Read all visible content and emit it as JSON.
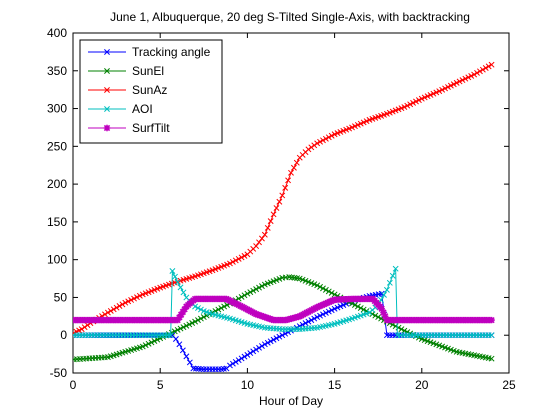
{
  "chart_data": {
    "type": "line",
    "title": "June 1, Albuquerque, 20 deg S-Tilted Single-Axis, with backtracking",
    "xlabel": "Hour of Day",
    "ylabel": "",
    "xlim": [
      0,
      25
    ],
    "ylim": [
      -50,
      400
    ],
    "xticks": [
      0,
      5,
      10,
      15,
      20,
      25
    ],
    "yticks": [
      -50,
      0,
      50,
      100,
      150,
      200,
      250,
      300,
      350,
      400
    ],
    "legend_position": "top-left",
    "grid": false,
    "series": [
      {
        "name": "Tracking angle",
        "color": "#0000ff",
        "marker": "x",
        "x": [
          0.05,
          5.7,
          5.9,
          6.1,
          6.3,
          6.5,
          6.7,
          6.9,
          7.5,
          8.0,
          8.5,
          8.8,
          9.0,
          10.0,
          11.0,
          12.0,
          13.0,
          14.0,
          15.0,
          16.0,
          17.0,
          17.7,
          18.0,
          18.5,
          24.0
        ],
        "y": [
          0,
          0,
          -5,
          -12,
          -20,
          -28,
          -36,
          -44,
          -45,
          -45,
          -45,
          -44,
          -40,
          -26,
          -12,
          0,
          12,
          24,
          35,
          45,
          52,
          55,
          0,
          0,
          0
        ]
      },
      {
        "name": "SunEl",
        "color": "#008000",
        "marker": "x",
        "x": [
          0.05,
          2.0,
          4.0,
          5.0,
          6.0,
          7.0,
          8.0,
          9.0,
          10.0,
          11.0,
          12.0,
          12.4,
          13.0,
          14.0,
          15.0,
          16.0,
          17.0,
          18.0,
          19.0,
          20.0,
          22.0,
          24.0
        ],
        "y": [
          -32,
          -29,
          -15,
          -4,
          7,
          18,
          30,
          42,
          55,
          67,
          76,
          77,
          75,
          66,
          54,
          42,
          30,
          18,
          6,
          -5,
          -22,
          -31
        ]
      },
      {
        "name": "SunAz",
        "color": "#ff0000",
        "marker": "x",
        "x": [
          0.05,
          0.5,
          1.0,
          2.0,
          3.0,
          4.0,
          5.0,
          6.0,
          7.0,
          8.0,
          9.0,
          10.0,
          10.5,
          11.0,
          11.5,
          12.0,
          12.5,
          13.0,
          13.5,
          14.0,
          15.0,
          16.0,
          17.0,
          18.0,
          19.0,
          20.0,
          21.0,
          22.0,
          23.0,
          24.0
        ],
        "y": [
          3,
          8,
          16,
          30,
          43,
          54,
          63,
          71,
          78,
          86,
          95,
          107,
          118,
          133,
          160,
          185,
          215,
          235,
          246,
          254,
          266,
          275,
          285,
          293,
          302,
          313,
          323,
          334,
          345,
          358
        ]
      },
      {
        "name": "AOI",
        "color": "#00bfbf",
        "marker": "x",
        "x": [
          0.05,
          5.6,
          5.7,
          6.0,
          6.5,
          7.0,
          7.5,
          8.0,
          9.0,
          10.0,
          11.0,
          12.0,
          13.0,
          14.0,
          15.0,
          16.0,
          17.0,
          17.5,
          18.0,
          18.5,
          18.6,
          19.0,
          24.0
        ],
        "y": [
          0,
          0,
          85,
          70,
          50,
          38,
          32,
          28,
          22,
          15,
          10,
          8,
          8,
          10,
          15,
          22,
          30,
          40,
          60,
          88,
          0,
          0,
          0
        ]
      },
      {
        "name": "SurfTilt",
        "color": "#bf00bf",
        "marker": "*",
        "x": [
          0.05,
          6.0,
          6.5,
          7.0,
          8.0,
          8.8,
          9.5,
          10.5,
          11.5,
          12.2,
          13.0,
          14.0,
          15.0,
          16.0,
          17.2,
          17.7,
          18.0,
          24.0
        ],
        "y": [
          20,
          20,
          38,
          48,
          48,
          48,
          40,
          28,
          20,
          20,
          25,
          37,
          47,
          48,
          48,
          35,
          20,
          20
        ]
      }
    ]
  }
}
